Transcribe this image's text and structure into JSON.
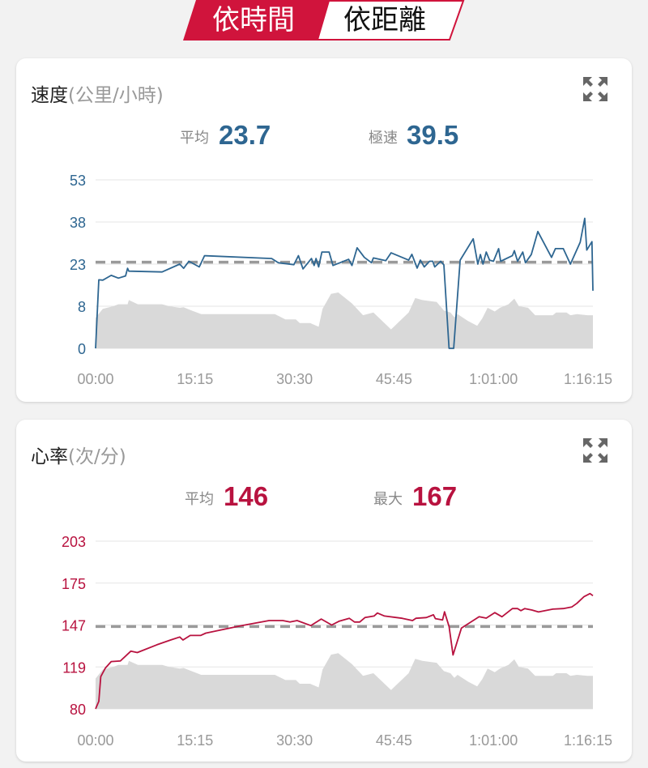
{
  "tabs": [
    {
      "label": "依時間",
      "active": true
    },
    {
      "label": "依距離",
      "active": false
    }
  ],
  "colors": {
    "accent_red": "#d0143c",
    "speed_blue": "#2e6691",
    "hr_red": "#b8123f",
    "average_line": "#9a9a9a",
    "elevation_fill": "#d9d9d9"
  },
  "speed_card": {
    "title": "速度",
    "unit": "(公里/小時)",
    "expand_icon": "expand-arrows-icon",
    "avg_label": "平均",
    "avg_value": "23.7",
    "max_label": "極速",
    "max_value": "39.5"
  },
  "hr_card": {
    "title": "心率",
    "unit": "(次/分)",
    "expand_icon": "expand-arrows-icon",
    "avg_label": "平均",
    "avg_value": "146",
    "max_label": "最大",
    "max_value": "167"
  },
  "chart_data": [
    {
      "type": "line",
      "x_unit": "minutes",
      "x_tick_labels": [
        "00:00",
        "15:15",
        "30:30",
        "45:45",
        "1:01:00",
        "1:16:15"
      ],
      "x_ticks": [
        0,
        15.25,
        30.5,
        45.75,
        61,
        76.25
      ],
      "xlim": [
        0,
        76.25
      ],
      "y_tick_labels": [
        "53",
        "38",
        "23",
        "8",
        "0"
      ],
      "y_ticks": [
        53,
        38,
        23,
        8,
        0
      ],
      "grid": true,
      "average": 23.7,
      "series": [
        {
          "values": [
            [
              0,
              0
            ],
            [
              0.5,
              17.4
            ],
            [
              1.1,
              17.3
            ],
            [
              2.4,
              19
            ],
            [
              3.5,
              18
            ],
            [
              4.6,
              18.8
            ],
            [
              4.9,
              21.5
            ],
            [
              5.1,
              20.5
            ],
            [
              10.2,
              20.2
            ],
            [
              12.9,
              23
            ],
            [
              13.5,
              21.5
            ],
            [
              14.3,
              24
            ],
            [
              15.9,
              22
            ],
            [
              16.7,
              26
            ],
            [
              27.0,
              25
            ],
            [
              28.0,
              23.5
            ],
            [
              30.4,
              22.8
            ],
            [
              31.1,
              26
            ],
            [
              31.8,
              21.3
            ],
            [
              33.1,
              25
            ],
            [
              33.5,
              22.5
            ],
            [
              33.8,
              25
            ],
            [
              34.2,
              22
            ],
            [
              34.7,
              27.3
            ],
            [
              35.8,
              27.3
            ],
            [
              36.4,
              22.5
            ],
            [
              38.8,
              24.7
            ],
            [
              39.3,
              22.5
            ],
            [
              40.1,
              28.8
            ],
            [
              41.2,
              25.4
            ],
            [
              42.3,
              23.5
            ],
            [
              42.6,
              25.2
            ],
            [
              44.5,
              24.2
            ],
            [
              45.3,
              27
            ],
            [
              48.0,
              24.4
            ],
            [
              48.5,
              26.5
            ],
            [
              49.3,
              21.6
            ],
            [
              49.8,
              24.4
            ],
            [
              50.4,
              22
            ],
            [
              51.2,
              24
            ],
            [
              51.7,
              24
            ],
            [
              52.0,
              22
            ],
            [
              52.9,
              24
            ],
            [
              53.4,
              22.7
            ],
            [
              54.2,
              0
            ],
            [
              54.9,
              0
            ],
            [
              55.9,
              24.4
            ],
            [
              57.9,
              32
            ],
            [
              58.6,
              23
            ],
            [
              59.0,
              26.4
            ],
            [
              59.4,
              23
            ],
            [
              59.9,
              27.3
            ],
            [
              60.4,
              24.4
            ],
            [
              61.0,
              24
            ],
            [
              61.8,
              28.5
            ],
            [
              62.1,
              24
            ],
            [
              63.9,
              26
            ],
            [
              64.2,
              27.8
            ],
            [
              64.7,
              24
            ],
            [
              65.5,
              27.3
            ],
            [
              65.9,
              23.5
            ],
            [
              66.8,
              26.4
            ],
            [
              67.8,
              34.6
            ],
            [
              69.9,
              25.4
            ],
            [
              70.5,
              28.5
            ],
            [
              71.7,
              28.5
            ],
            [
              72.8,
              23
            ],
            [
              74.3,
              30.8
            ],
            [
              75.0,
              39.3
            ],
            [
              75.3,
              28
            ],
            [
              76.1,
              31
            ],
            [
              76.25,
              13.5
            ]
          ]
        }
      ],
      "background_area": [
        [
          0,
          5.8
        ],
        [
          1.1,
          7.5
        ],
        [
          2.7,
          8.0
        ],
        [
          3.5,
          8.7
        ],
        [
          4.9,
          8.7
        ],
        [
          5.1,
          10.2
        ],
        [
          6.5,
          8.7
        ],
        [
          10.2,
          8.7
        ],
        [
          11.3,
          8
        ],
        [
          12.9,
          7.7
        ],
        [
          13.5,
          7.8
        ],
        [
          14.5,
          7.3
        ],
        [
          16.2,
          6.5
        ],
        [
          27.5,
          6.5
        ],
        [
          29.1,
          5.5
        ],
        [
          30.7,
          5.5
        ],
        [
          31.3,
          4.8
        ],
        [
          32.9,
          4.8
        ],
        [
          34.2,
          4.1
        ],
        [
          34.8,
          7.5
        ],
        [
          36.1,
          12.4
        ],
        [
          37.2,
          12.9
        ],
        [
          39.3,
          9
        ],
        [
          41.0,
          6.3
        ],
        [
          42.6,
          6.8
        ],
        [
          45.3,
          3.6
        ],
        [
          48.0,
          6.8
        ],
        [
          49.0,
          10.9
        ],
        [
          50.1,
          10.2
        ],
        [
          52.3,
          9.5
        ],
        [
          53.4,
          7.2
        ],
        [
          54.4,
          6.8
        ],
        [
          55.0,
          5.9
        ],
        [
          55.5,
          6.5
        ],
        [
          57.1,
          5.2
        ],
        [
          58.5,
          4.3
        ],
        [
          59.3,
          5.7
        ],
        [
          60.1,
          7.7
        ],
        [
          61.2,
          7
        ],
        [
          62.0,
          7.7
        ],
        [
          63.3,
          8.7
        ],
        [
          64.2,
          10.7
        ],
        [
          64.9,
          8
        ],
        [
          66.3,
          7.7
        ],
        [
          67.4,
          6.3
        ],
        [
          70.1,
          6.3
        ],
        [
          70.6,
          6.8
        ],
        [
          72.2,
          6.8
        ],
        [
          72.8,
          6.3
        ],
        [
          73.8,
          6.5
        ],
        [
          75.4,
          6.3
        ],
        [
          76.25,
          6.3
        ]
      ]
    },
    {
      "type": "line",
      "x_unit": "minutes",
      "x_tick_labels": [
        "00:00",
        "15:15",
        "30:30",
        "45:45",
        "1:01:00",
        "1:16:15"
      ],
      "x_ticks": [
        0,
        15.25,
        30.5,
        45.75,
        61,
        76.25
      ],
      "xlim": [
        0,
        76.25
      ],
      "y_tick_labels": [
        "203",
        "175",
        "147",
        "119",
        "80"
      ],
      "y_ticks": [
        203,
        175,
        147,
        119,
        80
      ],
      "grid": true,
      "average": 146,
      "series": [
        {
          "values": [
            [
              0,
              80
            ],
            [
              0.5,
              87
            ],
            [
              0.8,
              110
            ],
            [
              1.5,
              118
            ],
            [
              2.4,
              122.6
            ],
            [
              3.8,
              123
            ],
            [
              5.4,
              129.5
            ],
            [
              6.4,
              128.6
            ],
            [
              9.4,
              133.8
            ],
            [
              11.5,
              137
            ],
            [
              12.9,
              139
            ],
            [
              13.4,
              137
            ],
            [
              14.5,
              140
            ],
            [
              16.1,
              140
            ],
            [
              16.9,
              141.6
            ],
            [
              22.3,
              146.5
            ],
            [
              26.6,
              150
            ],
            [
              28.7,
              150
            ],
            [
              29.8,
              149
            ],
            [
              30.9,
              150
            ],
            [
              33.0,
              146.6
            ],
            [
              34.6,
              151
            ],
            [
              36.2,
              147
            ],
            [
              37.3,
              149.5
            ],
            [
              38.9,
              151.5
            ],
            [
              39.7,
              149
            ],
            [
              40.5,
              149
            ],
            [
              41.3,
              152
            ],
            [
              42.7,
              153
            ],
            [
              43.2,
              155
            ],
            [
              44.3,
              153
            ],
            [
              47.0,
              151.5
            ],
            [
              48.6,
              150
            ],
            [
              49.1,
              151.5
            ],
            [
              50.7,
              152
            ],
            [
              51.8,
              153.8
            ],
            [
              52.1,
              151.3
            ],
            [
              53.2,
              150.4
            ],
            [
              53.5,
              155.8
            ],
            [
              54.2,
              146
            ],
            [
              54.8,
              127
            ],
            [
              56.1,
              145
            ],
            [
              58.8,
              152.5
            ],
            [
              59.9,
              151.6
            ],
            [
              61.2,
              155.3
            ],
            [
              62.3,
              152.5
            ],
            [
              63.9,
              158
            ],
            [
              64.7,
              158
            ],
            [
              65.2,
              156.6
            ],
            [
              65.8,
              158
            ],
            [
              66.9,
              157
            ],
            [
              67.9,
              155.7
            ],
            [
              70.1,
              157.6
            ],
            [
              71.7,
              158
            ],
            [
              73.0,
              159
            ],
            [
              73.8,
              161.5
            ],
            [
              74.9,
              166
            ],
            [
              75.8,
              168
            ],
            [
              76.25,
              166.6
            ]
          ]
        }
      ]
    }
  ]
}
